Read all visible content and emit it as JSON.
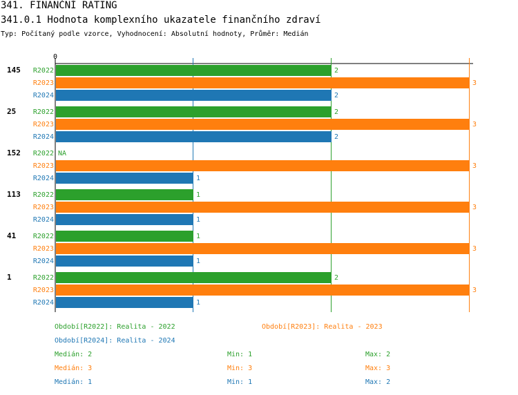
{
  "header": {
    "title": "341. FINANČNÍ RATING",
    "subtitle": "341.0.1 Hodnota komplexního ukazatele finančního zdraví",
    "info": "Typ: Počítaný podle vzorce, Vyhodnocení: Absolutní hodnoty, Průměr: Medián"
  },
  "colors": {
    "R2022": "#2ca02c",
    "R2023": "#ff7f0e",
    "R2024": "#1f77b4"
  },
  "chart_data": {
    "type": "bar",
    "orientation": "horizontal",
    "axis_zero_label": "0",
    "xlim": [
      0,
      3
    ],
    "groups": [
      {
        "label": "145",
        "bars": [
          {
            "series": "R2022",
            "value": 2,
            "text": "2"
          },
          {
            "series": "R2023",
            "value": 3,
            "text": "3"
          },
          {
            "series": "R2024",
            "value": 2,
            "text": "2"
          }
        ]
      },
      {
        "label": "25",
        "bars": [
          {
            "series": "R2022",
            "value": 2,
            "text": "2"
          },
          {
            "series": "R2023",
            "value": 3,
            "text": "3"
          },
          {
            "series": "R2024",
            "value": 2,
            "text": "2"
          }
        ]
      },
      {
        "label": "152",
        "bars": [
          {
            "series": "R2022",
            "value": null,
            "text": "NA"
          },
          {
            "series": "R2023",
            "value": 3,
            "text": "3"
          },
          {
            "series": "R2024",
            "value": 1,
            "text": "1"
          }
        ]
      },
      {
        "label": "113",
        "bars": [
          {
            "series": "R2022",
            "value": 1,
            "text": "1"
          },
          {
            "series": "R2023",
            "value": 3,
            "text": "3"
          },
          {
            "series": "R2024",
            "value": 1,
            "text": "1"
          }
        ]
      },
      {
        "label": "41",
        "bars": [
          {
            "series": "R2022",
            "value": 1,
            "text": "1"
          },
          {
            "series": "R2023",
            "value": 3,
            "text": "3"
          },
          {
            "series": "R2024",
            "value": 1,
            "text": "1"
          }
        ]
      },
      {
        "label": "1",
        "bars": [
          {
            "series": "R2022",
            "value": 2,
            "text": "2"
          },
          {
            "series": "R2023",
            "value": 3,
            "text": "3"
          },
          {
            "series": "R2024",
            "value": 1,
            "text": "1"
          }
        ]
      }
    ],
    "reference_lines": [
      {
        "series": "R2022",
        "statistic": "median",
        "value": 2
      },
      {
        "series": "R2023",
        "statistic": "median",
        "value": 3
      },
      {
        "series": "R2024",
        "statistic": "median",
        "value": 1
      }
    ]
  },
  "legend": {
    "periods": [
      {
        "series": "R2022",
        "text": "Období[R2022]: Realita - 2022"
      },
      {
        "series": "R2023",
        "text": "Období[R2023]: Realita - 2023"
      },
      {
        "series": "R2024",
        "text": "Období[R2024]: Realita - 2024"
      }
    ],
    "stats": [
      {
        "series": "R2022",
        "median": "Medián: 2",
        "min": "Min: 1",
        "max": "Max: 2"
      },
      {
        "series": "R2023",
        "median": "Medián: 3",
        "min": "Min: 3",
        "max": "Max: 3"
      },
      {
        "series": "R2024",
        "median": "Medián: 1",
        "min": "Min: 1",
        "max": "Max: 2"
      }
    ]
  }
}
